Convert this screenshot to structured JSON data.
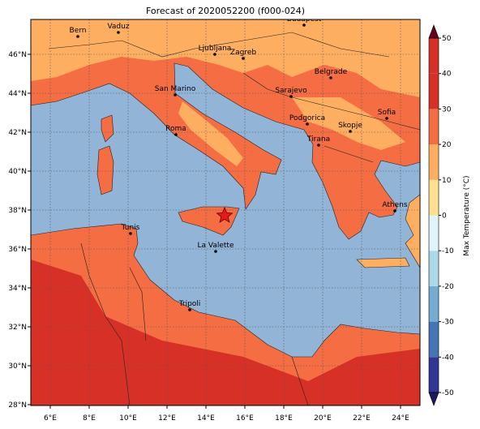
{
  "title": "Forecast of 2020052200 (f000-024)",
  "x_tick_labels": [
    "6°E",
    "8°E",
    "10°E",
    "12°E",
    "14°E",
    "16°E",
    "18°E",
    "20°E",
    "22°E",
    "24°E"
  ],
  "y_tick_labels": [
    "28°N",
    "30°N",
    "32°N",
    "34°N",
    "36°N",
    "38°N",
    "40°N",
    "42°N",
    "44°N",
    "46°N"
  ],
  "cities": [
    "Bern",
    "Vaduz",
    "Budapest",
    "Ljubljana",
    "Zagreb",
    "Belgrade",
    "Sarajevo",
    "San Marino",
    "Sofia",
    "Podgorica",
    "Skopje",
    "Roma",
    "Tirana",
    "Athens",
    "Tunis",
    "La Valette",
    "Tripoli"
  ],
  "colorbar": {
    "label": "Max Temperature (°C)",
    "ticks": [
      -50,
      -40,
      -30,
      -20,
      -10,
      0,
      10,
      20,
      30,
      40,
      50
    ]
  }
}
